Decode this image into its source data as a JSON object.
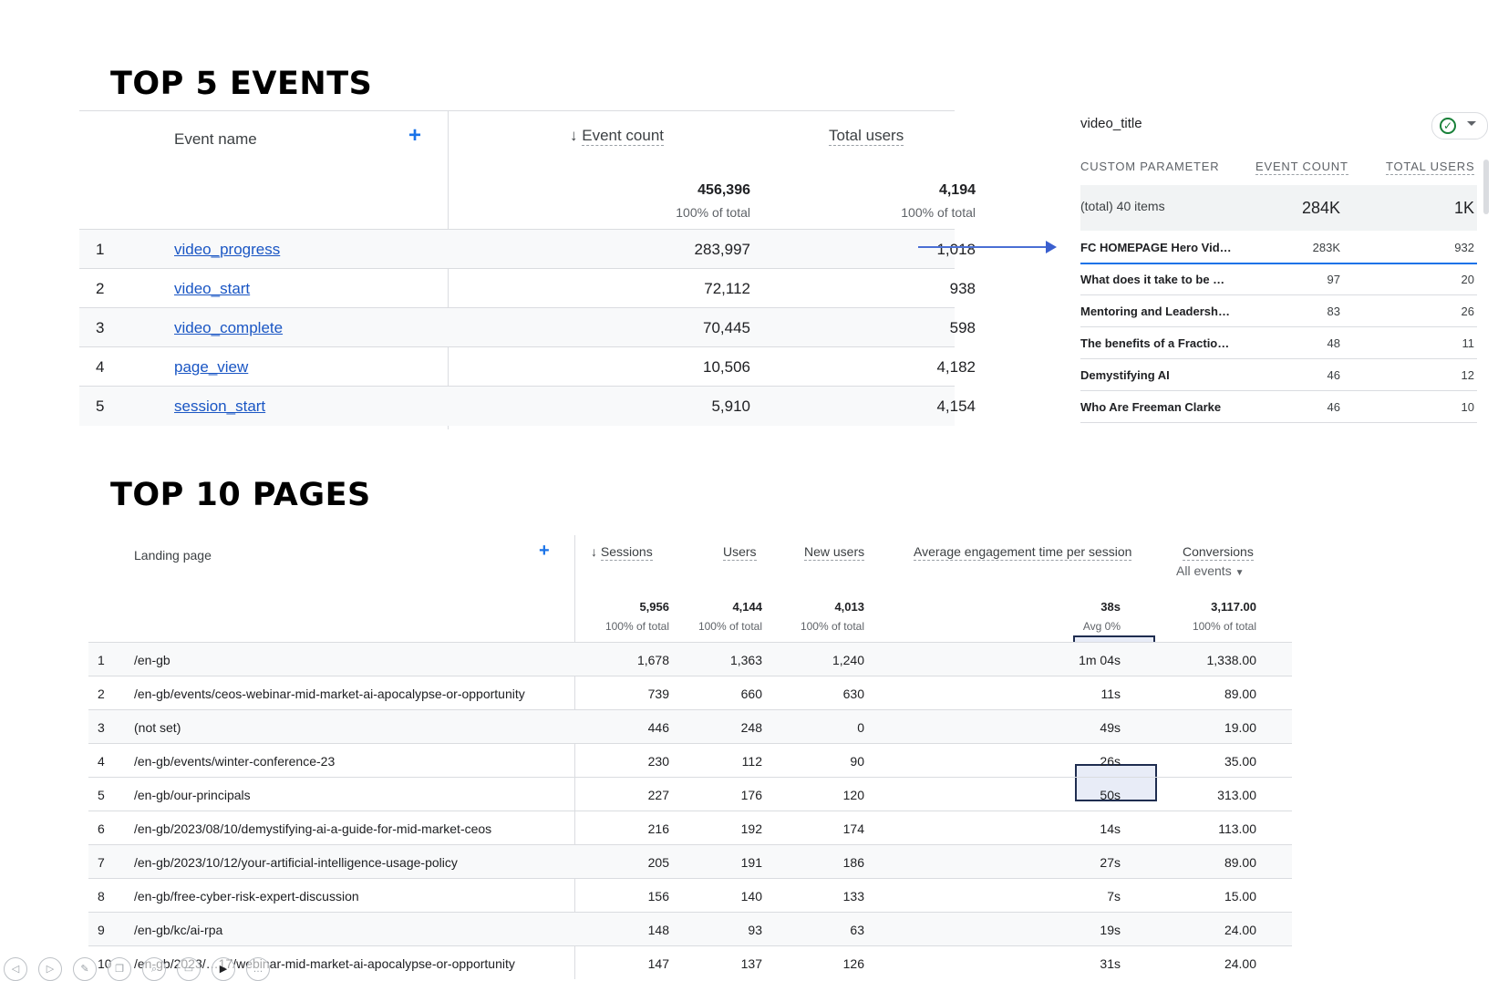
{
  "events_section": {
    "heading": "TOP 5 EVENTS",
    "columns": {
      "event_name": "Event name",
      "event_count": "Event count",
      "total_users": "Total users"
    },
    "totals": {
      "event_count": "456,396",
      "event_count_pct": "100% of total",
      "total_users": "4,194",
      "total_users_pct": "100% of total"
    },
    "rows": [
      {
        "rank": "1",
        "name": "video_progress",
        "count": "283,997",
        "users": "1,018"
      },
      {
        "rank": "2",
        "name": "video_start",
        "count": "72,112",
        "users": "938"
      },
      {
        "rank": "3",
        "name": "video_complete",
        "count": "70,445",
        "users": "598"
      },
      {
        "rank": "4",
        "name": "page_view",
        "count": "10,506",
        "users": "4,182"
      },
      {
        "rank": "5",
        "name": "session_start",
        "count": "5,910",
        "users": "4,154"
      }
    ]
  },
  "video_panel": {
    "title": "video_title",
    "columns": {
      "param": "CUSTOM PARAMETER",
      "count": "EVENT COUNT",
      "users": "TOTAL USERS"
    },
    "totals": {
      "label": "(total) 40 items",
      "count": "284K",
      "users": "1K"
    },
    "rows": [
      {
        "name": "FC HOMEPAGE Hero Vid…",
        "count": "283K",
        "users": "932"
      },
      {
        "name": "What does it take to be …",
        "count": "97",
        "users": "20"
      },
      {
        "name": "Mentoring and Leadersh…",
        "count": "83",
        "users": "26"
      },
      {
        "name": "The benefits of a Fractio…",
        "count": "48",
        "users": "11"
      },
      {
        "name": "Demystifying AI",
        "count": "46",
        "users": "12"
      },
      {
        "name": "Who Are Freeman Clarke",
        "count": "46",
        "users": "10"
      }
    ]
  },
  "pages_section": {
    "heading": "TOP 10 PAGES",
    "columns": {
      "landing": "Landing page",
      "sessions": "Sessions",
      "users": "Users",
      "new_users": "New users",
      "avg_time": "Average engagement time per session",
      "conversions": "Conversions",
      "conversions_filter": "All events"
    },
    "totals": {
      "sessions": "5,956",
      "sessions_pct": "100% of total",
      "users": "4,144",
      "users_pct": "100% of total",
      "new_users": "4,013",
      "new_users_pct": "100% of total",
      "avg_time": "38s",
      "avg_time_pct": "Avg 0%",
      "conversions": "3,117.00",
      "conversions_pct": "100% of total"
    },
    "rows": [
      {
        "rank": "1",
        "page": "/en-gb",
        "sessions": "1,678",
        "users": "1,363",
        "new_users": "1,240",
        "avg_time": "1m 04s",
        "conversions": "1,338.00"
      },
      {
        "rank": "2",
        "page": "/en-gb/events/ceos-webinar-mid-market-ai-apocalypse-or-opportunity",
        "sessions": "739",
        "users": "660",
        "new_users": "630",
        "avg_time": "11s",
        "conversions": "89.00"
      },
      {
        "rank": "3",
        "page": "(not set)",
        "sessions": "446",
        "users": "248",
        "new_users": "0",
        "avg_time": "49s",
        "conversions": "19.00"
      },
      {
        "rank": "4",
        "page": "/en-gb/events/winter-conference-23",
        "sessions": "230",
        "users": "112",
        "new_users": "90",
        "avg_time": "26s",
        "conversions": "35.00"
      },
      {
        "rank": "5",
        "page": "/en-gb/our-principals",
        "sessions": "227",
        "users": "176",
        "new_users": "120",
        "avg_time": "50s",
        "conversions": "313.00"
      },
      {
        "rank": "6",
        "page": "/en-gb/2023/08/10/demystifying-ai-a-guide-for-mid-market-ceos",
        "sessions": "216",
        "users": "192",
        "new_users": "174",
        "avg_time": "14s",
        "conversions": "113.00"
      },
      {
        "rank": "7",
        "page": "/en-gb/2023/10/12/your-artificial-intelligence-usage-policy",
        "sessions": "205",
        "users": "191",
        "new_users": "186",
        "avg_time": "27s",
        "conversions": "89.00"
      },
      {
        "rank": "8",
        "page": "/en-gb/free-cyber-risk-expert-discussion",
        "sessions": "156",
        "users": "140",
        "new_users": "133",
        "avg_time": "7s",
        "conversions": "15.00"
      },
      {
        "rank": "9",
        "page": "/en-gb/kc/ai-rpa",
        "sessions": "148",
        "users": "93",
        "new_users": "63",
        "avg_time": "19s",
        "conversions": "24.00"
      },
      {
        "rank": "10",
        "page": "/en-gb/2023/…17/webinar-mid-market-ai-apocalypse-or-opportunity",
        "sessions": "147",
        "users": "137",
        "new_users": "126",
        "avg_time": "31s",
        "conversions": "24.00"
      }
    ]
  },
  "toolbar": {
    "icons": [
      "previous-icon",
      "next-icon",
      "pen-icon",
      "copy-icon",
      "zoom-icon",
      "screen-icon",
      "video-icon",
      "more-icon"
    ],
    "glyphs": {
      "previous": "◁",
      "next": "▷",
      "pen": "✎",
      "copy": "❐",
      "zoom": "⌕",
      "screen": "▭",
      "video": "▶",
      "more": "…"
    }
  },
  "colors": {
    "link": "#1a56c4",
    "accent": "#1a73e8",
    "arrow": "#4a6fd4",
    "highlight_border": "#1f2d50",
    "highlight_fill": "#e8ecf7"
  }
}
